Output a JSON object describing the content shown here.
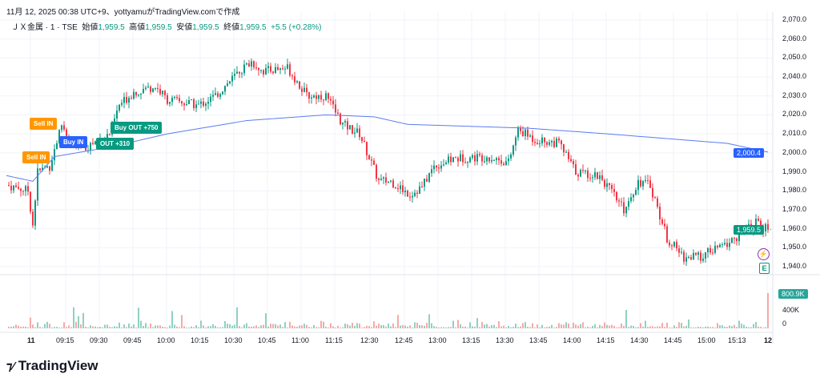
{
  "header": {
    "caption": "11月 12, 2025 00:38 UTC+9、yottyamuがTradingView.comで作成"
  },
  "symbol": {
    "name": "ＪＸ金属 · 1 · TSE",
    "open_label": "始値",
    "open": "1,959.5",
    "high_label": "高値",
    "high": "1,959.5",
    "low_label": "安値",
    "low": "1,959.5",
    "close_label": "終値",
    "close": "1,959.5",
    "change": "+5.5 (+0.28%)"
  },
  "colors": {
    "up": "#089981",
    "down": "#f23645",
    "vwap": "#5b7cf0",
    "sell": "#ff9800",
    "buy": "#2962ff",
    "exit": "#089981"
  },
  "markers": [
    {
      "label": "Sell IN",
      "type": "sell"
    },
    {
      "label": "Sell IN",
      "type": "sell"
    },
    {
      "label": "Buy IN",
      "type": "buy"
    },
    {
      "label": "OUT +310",
      "type": "exit"
    },
    {
      "label": "Buy OUT +750",
      "type": "exit"
    }
  ],
  "badges": {
    "vwap": "2,000.4",
    "last": "1,959.5",
    "volume": "800.9K"
  },
  "logo": "TradingView",
  "chart_data": {
    "type": "candlestick",
    "ylim": [
      1935,
      2072
    ],
    "y_ticks": [
      "2,070.0",
      "2,060.0",
      "2,050.0",
      "2,040.0",
      "2,030.0",
      "2,020.0",
      "2,010.0",
      "2,000.0",
      "1,990.0",
      "1,980.0",
      "1,970.0",
      "1,960.0",
      "1,950.0",
      "1,940.0"
    ],
    "y_tick_values": [
      2070,
      2060,
      2050,
      2040,
      2030,
      2020,
      2010,
      2000,
      1990,
      1980,
      1970,
      1960,
      1950,
      1940
    ],
    "x_ticks": [
      "11",
      "09:15",
      "09:30",
      "09:45",
      "10:00",
      "10:15",
      "10:30",
      "10:45",
      "11:00",
      "11:15",
      "12:30",
      "12:45",
      "13:00",
      "13:15",
      "13:30",
      "13:45",
      "14:00",
      "14:15",
      "14:30",
      "14:45",
      "15:00",
      "15:13",
      "12"
    ],
    "price_path": [
      [
        0,
        1983
      ],
      [
        9,
        1980
      ],
      [
        11,
        1962
      ],
      [
        13,
        1990
      ],
      [
        18,
        1993
      ],
      [
        23,
        2015
      ],
      [
        27,
        2005
      ],
      [
        33,
        2003
      ],
      [
        43,
        2010
      ],
      [
        47,
        2025
      ],
      [
        53,
        2032
      ],
      [
        62,
        2035
      ],
      [
        67,
        2028
      ],
      [
        80,
        2025
      ],
      [
        87,
        2030
      ],
      [
        97,
        2043
      ],
      [
        102,
        2048
      ],
      [
        107,
        2043
      ],
      [
        117,
        2045
      ],
      [
        125,
        2030
      ],
      [
        133,
        2030
      ],
      [
        140,
        2015
      ],
      [
        147,
        2010
      ],
      [
        155,
        1985
      ],
      [
        160,
        1985
      ],
      [
        168,
        1978
      ],
      [
        173,
        1982
      ],
      [
        178,
        1993
      ],
      [
        187,
        1997
      ],
      [
        200,
        1998
      ],
      [
        209,
        1995
      ],
      [
        213,
        2012
      ],
      [
        220,
        2007
      ],
      [
        230,
        2005
      ],
      [
        237,
        1990
      ],
      [
        247,
        1988
      ],
      [
        257,
        1970
      ],
      [
        263,
        1985
      ],
      [
        268,
        1983
      ],
      [
        275,
        1955
      ],
      [
        282,
        1945
      ],
      [
        288,
        1945
      ],
      [
        300,
        1952
      ],
      [
        312,
        1963
      ],
      [
        317,
        1959.5
      ]
    ],
    "vwap_path": [
      [
        0,
        1988
      ],
      [
        11,
        1985
      ],
      [
        20,
        1998
      ],
      [
        43,
        2003
      ],
      [
        67,
        2010
      ],
      [
        100,
        2017
      ],
      [
        133,
        2020
      ],
      [
        153,
        2019
      ],
      [
        167,
        2015
      ],
      [
        217,
        2013
      ],
      [
        250,
        2010
      ],
      [
        300,
        2005
      ],
      [
        317,
        2000.4
      ]
    ],
    "volume_ticks": [
      "400K",
      "0"
    ],
    "volume_last": 800.9
  }
}
